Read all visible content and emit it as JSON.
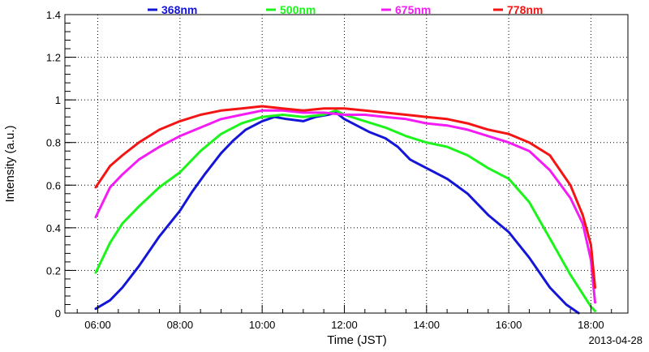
{
  "chart_data": {
    "type": "line",
    "title": "",
    "xlabel": "Time (JST)",
    "ylabel": "Intensity (a.u.)",
    "date_label": "2013-04-28",
    "x_unit": "hours JST",
    "xlim": [
      5.2,
      18.9
    ],
    "ylim": [
      0,
      1.4
    ],
    "x_ticks": [
      {
        "value": 6,
        "label": "06:00"
      },
      {
        "value": 8,
        "label": "08:00"
      },
      {
        "value": 10,
        "label": "10:00"
      },
      {
        "value": 12,
        "label": "12:00"
      },
      {
        "value": 14,
        "label": "14:00"
      },
      {
        "value": 16,
        "label": "16:00"
      },
      {
        "value": 18,
        "label": "18:00"
      }
    ],
    "y_ticks": [
      {
        "value": 0,
        "label": "0"
      },
      {
        "value": 0.2,
        "label": "0.2"
      },
      {
        "value": 0.4,
        "label": "0.4"
      },
      {
        "value": 0.6,
        "label": "0.6"
      },
      {
        "value": 0.8,
        "label": "0.8"
      },
      {
        "value": 1.0,
        "label": "1"
      },
      {
        "value": 1.2,
        "label": "1.2"
      },
      {
        "value": 1.4,
        "label": "1.4"
      }
    ],
    "grid": true,
    "legend_position": "top",
    "series": [
      {
        "name": "368nm",
        "color": "#1515d8",
        "x": [
          5.95,
          6.3,
          6.6,
          7.0,
          7.5,
          8.0,
          8.3,
          8.6,
          9.0,
          9.3,
          9.6,
          10.0,
          10.3,
          10.6,
          11.0,
          11.3,
          11.6,
          11.8,
          12.0,
          12.3,
          12.6,
          13.0,
          13.3,
          13.6,
          14.0,
          14.5,
          15.0,
          15.5,
          16.0,
          16.5,
          17.0,
          17.4,
          17.7
        ],
        "y": [
          0.02,
          0.06,
          0.12,
          0.22,
          0.36,
          0.48,
          0.57,
          0.65,
          0.75,
          0.81,
          0.86,
          0.9,
          0.92,
          0.91,
          0.9,
          0.92,
          0.93,
          0.94,
          0.91,
          0.88,
          0.85,
          0.82,
          0.78,
          0.72,
          0.68,
          0.63,
          0.56,
          0.46,
          0.38,
          0.26,
          0.12,
          0.04,
          0.0
        ]
      },
      {
        "name": "500nm",
        "color": "#1cf41c",
        "x": [
          5.95,
          6.3,
          6.6,
          7.0,
          7.5,
          8.0,
          8.5,
          9.0,
          9.5,
          10.0,
          10.5,
          11.0,
          11.5,
          11.8,
          12.0,
          12.5,
          13.0,
          13.5,
          14.0,
          14.5,
          15.0,
          15.5,
          16.0,
          16.5,
          17.0,
          17.5,
          18.0,
          18.1
        ],
        "y": [
          0.19,
          0.33,
          0.42,
          0.5,
          0.59,
          0.66,
          0.76,
          0.84,
          0.89,
          0.92,
          0.93,
          0.92,
          0.93,
          0.95,
          0.93,
          0.9,
          0.87,
          0.83,
          0.8,
          0.78,
          0.74,
          0.68,
          0.63,
          0.52,
          0.35,
          0.18,
          0.03,
          0.01
        ]
      },
      {
        "name": "675nm",
        "color": "#f41cf4",
        "x": [
          5.95,
          6.3,
          6.6,
          7.0,
          7.5,
          8.0,
          8.5,
          9.0,
          9.5,
          10.0,
          10.5,
          11.0,
          11.5,
          12.0,
          12.5,
          13.0,
          13.5,
          14.0,
          14.5,
          15.0,
          15.5,
          16.0,
          16.5,
          17.0,
          17.5,
          17.8,
          18.0,
          18.1
        ],
        "y": [
          0.45,
          0.59,
          0.65,
          0.72,
          0.78,
          0.83,
          0.87,
          0.91,
          0.93,
          0.95,
          0.95,
          0.94,
          0.94,
          0.93,
          0.93,
          0.92,
          0.91,
          0.89,
          0.88,
          0.86,
          0.83,
          0.8,
          0.76,
          0.67,
          0.54,
          0.42,
          0.25,
          0.05
        ]
      },
      {
        "name": "778nm",
        "color": "#f41414",
        "x": [
          5.95,
          6.3,
          6.6,
          7.0,
          7.5,
          8.0,
          8.5,
          9.0,
          9.5,
          10.0,
          10.5,
          11.0,
          11.5,
          12.0,
          12.5,
          13.0,
          13.5,
          14.0,
          14.5,
          15.0,
          15.5,
          16.0,
          16.5,
          17.0,
          17.5,
          17.8,
          18.0,
          18.1
        ],
        "y": [
          0.59,
          0.69,
          0.74,
          0.8,
          0.86,
          0.9,
          0.93,
          0.95,
          0.96,
          0.97,
          0.96,
          0.95,
          0.96,
          0.96,
          0.95,
          0.94,
          0.93,
          0.92,
          0.91,
          0.89,
          0.86,
          0.84,
          0.8,
          0.74,
          0.6,
          0.46,
          0.32,
          0.12
        ]
      }
    ]
  }
}
